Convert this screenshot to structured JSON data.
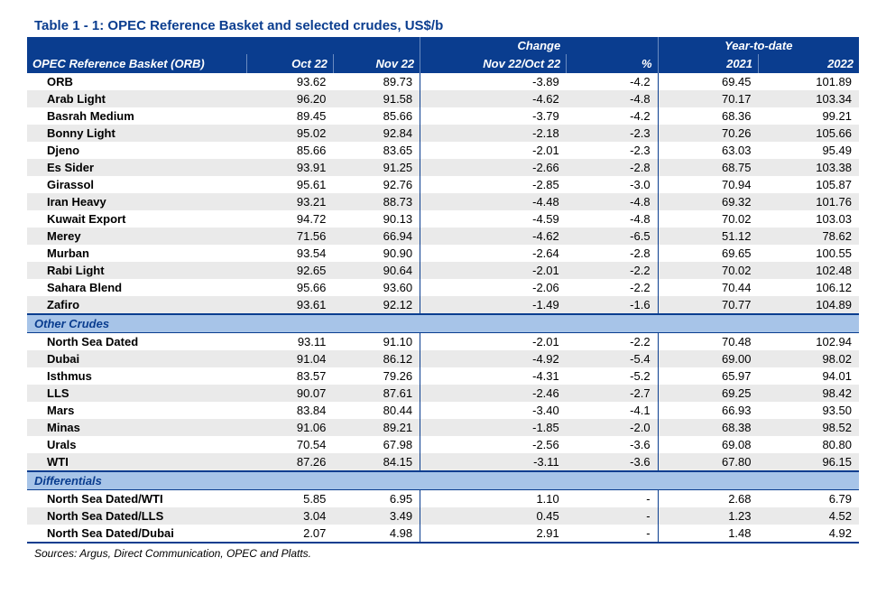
{
  "title": "Table 1 - 1: OPEC Reference Basket and selected crudes, US$/b",
  "colors": {
    "header_bg": "#0a3d8f",
    "section_bg": "#a7c4e8",
    "row_alt_bg": "#eaeaea",
    "row_bg": "#ffffff",
    "text": "#000000"
  },
  "fontsize": {
    "title": 15,
    "body": 13,
    "sources": 12
  },
  "header": {
    "main_label": "OPEC Reference Basket (ORB)",
    "group_change": "Change",
    "group_ytd": "Year-to-date",
    "cols": {
      "oct": "Oct 22",
      "nov": "Nov 22",
      "chg": "Nov 22/Oct 22",
      "pct": "%",
      "y2021": "2021",
      "y2022": "2022"
    }
  },
  "sections": [
    {
      "label": null,
      "rows": [
        {
          "name": "ORB",
          "oct": "93.62",
          "nov": "89.73",
          "chg": "-3.89",
          "pct": "-4.2",
          "y21": "69.45",
          "y22": "101.89"
        },
        {
          "name": "Arab Light",
          "oct": "96.20",
          "nov": "91.58",
          "chg": "-4.62",
          "pct": "-4.8",
          "y21": "70.17",
          "y22": "103.34"
        },
        {
          "name": "Basrah Medium",
          "oct": "89.45",
          "nov": "85.66",
          "chg": "-3.79",
          "pct": "-4.2",
          "y21": "68.36",
          "y22": "99.21"
        },
        {
          "name": "Bonny Light",
          "oct": "95.02",
          "nov": "92.84",
          "chg": "-2.18",
          "pct": "-2.3",
          "y21": "70.26",
          "y22": "105.66"
        },
        {
          "name": "Djeno",
          "oct": "85.66",
          "nov": "83.65",
          "chg": "-2.01",
          "pct": "-2.3",
          "y21": "63.03",
          "y22": "95.49"
        },
        {
          "name": "Es Sider",
          "oct": "93.91",
          "nov": "91.25",
          "chg": "-2.66",
          "pct": "-2.8",
          "y21": "68.75",
          "y22": "103.38"
        },
        {
          "name": "Girassol",
          "oct": "95.61",
          "nov": "92.76",
          "chg": "-2.85",
          "pct": "-3.0",
          "y21": "70.94",
          "y22": "105.87"
        },
        {
          "name": "Iran Heavy",
          "oct": "93.21",
          "nov": "88.73",
          "chg": "-4.48",
          "pct": "-4.8",
          "y21": "69.32",
          "y22": "101.76"
        },
        {
          "name": "Kuwait Export",
          "oct": "94.72",
          "nov": "90.13",
          "chg": "-4.59",
          "pct": "-4.8",
          "y21": "70.02",
          "y22": "103.03"
        },
        {
          "name": "Merey",
          "oct": "71.56",
          "nov": "66.94",
          "chg": "-4.62",
          "pct": "-6.5",
          "y21": "51.12",
          "y22": "78.62"
        },
        {
          "name": "Murban",
          "oct": "93.54",
          "nov": "90.90",
          "chg": "-2.64",
          "pct": "-2.8",
          "y21": "69.65",
          "y22": "100.55"
        },
        {
          "name": "Rabi Light",
          "oct": "92.65",
          "nov": "90.64",
          "chg": "-2.01",
          "pct": "-2.2",
          "y21": "70.02",
          "y22": "102.48"
        },
        {
          "name": "Sahara Blend",
          "oct": "95.66",
          "nov": "93.60",
          "chg": "-2.06",
          "pct": "-2.2",
          "y21": "70.44",
          "y22": "106.12"
        },
        {
          "name": "Zafiro",
          "oct": "93.61",
          "nov": "92.12",
          "chg": "-1.49",
          "pct": "-1.6",
          "y21": "70.77",
          "y22": "104.89"
        }
      ]
    },
    {
      "label": "Other Crudes",
      "rows": [
        {
          "name": "North Sea Dated",
          "oct": "93.11",
          "nov": "91.10",
          "chg": "-2.01",
          "pct": "-2.2",
          "y21": "70.48",
          "y22": "102.94"
        },
        {
          "name": "Dubai",
          "oct": "91.04",
          "nov": "86.12",
          "chg": "-4.92",
          "pct": "-5.4",
          "y21": "69.00",
          "y22": "98.02"
        },
        {
          "name": "Isthmus",
          "oct": "83.57",
          "nov": "79.26",
          "chg": "-4.31",
          "pct": "-5.2",
          "y21": "65.97",
          "y22": "94.01"
        },
        {
          "name": "LLS",
          "oct": "90.07",
          "nov": "87.61",
          "chg": "-2.46",
          "pct": "-2.7",
          "y21": "69.25",
          "y22": "98.42"
        },
        {
          "name": "Mars",
          "oct": "83.84",
          "nov": "80.44",
          "chg": "-3.40",
          "pct": "-4.1",
          "y21": "66.93",
          "y22": "93.50"
        },
        {
          "name": "Minas",
          "oct": "91.06",
          "nov": "89.21",
          "chg": "-1.85",
          "pct": "-2.0",
          "y21": "68.38",
          "y22": "98.52"
        },
        {
          "name": "Urals",
          "oct": "70.54",
          "nov": "67.98",
          "chg": "-2.56",
          "pct": "-3.6",
          "y21": "69.08",
          "y22": "80.80"
        },
        {
          "name": "WTI",
          "oct": "87.26",
          "nov": "84.15",
          "chg": "-3.11",
          "pct": "-3.6",
          "y21": "67.80",
          "y22": "96.15"
        }
      ]
    },
    {
      "label": "Differentials",
      "rows": [
        {
          "name": "North Sea Dated/WTI",
          "oct": "5.85",
          "nov": "6.95",
          "chg": "1.10",
          "pct": "-",
          "y21": "2.68",
          "y22": "6.79"
        },
        {
          "name": "North Sea Dated/LLS",
          "oct": "3.04",
          "nov": "3.49",
          "chg": "0.45",
          "pct": "-",
          "y21": "1.23",
          "y22": "4.52"
        },
        {
          "name": "North Sea Dated/Dubai",
          "oct": "2.07",
          "nov": "4.98",
          "chg": "2.91",
          "pct": "-",
          "y21": "1.48",
          "y22": "4.92"
        }
      ]
    }
  ],
  "sources": "Sources:  Argus, Direct Communication, OPEC and Platts."
}
